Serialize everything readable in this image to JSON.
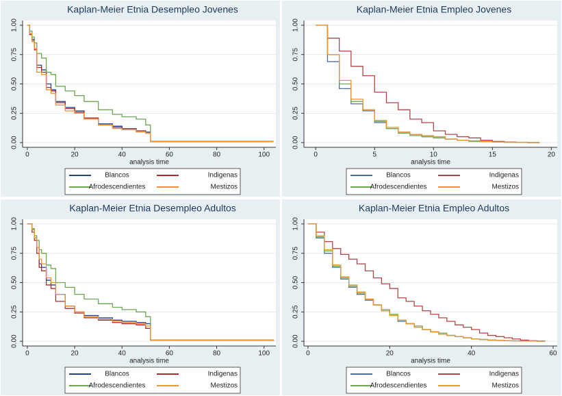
{
  "chart_data": [
    {
      "type": "step",
      "title": "Kaplan-Meier Etnia Desempleo Jovenes",
      "x_label": "analysis time",
      "xlim": [
        -2,
        105
      ],
      "xticks": [
        0,
        20,
        40,
        60,
        80,
        100
      ],
      "ylim": [
        -0.04,
        1.04
      ],
      "yticks": [
        {
          "value": 0,
          "label": "0.00"
        },
        {
          "value": 0.25,
          "label": "0.25"
        },
        {
          "value": 0.5,
          "label": "0.50"
        },
        {
          "value": 0.75,
          "label": "0.75"
        },
        {
          "value": 1,
          "label": "1.00"
        }
      ],
      "grid": true,
      "legend": "bottom",
      "series": [
        {
          "name": "Blancos",
          "color": "#1f3f8f",
          "x": [
            0,
            1,
            2,
            3,
            4,
            6,
            8,
            10,
            12,
            16,
            20,
            24,
            30,
            36,
            40,
            46,
            50,
            52,
            104
          ],
          "values": [
            1,
            0.93,
            0.88,
            0.8,
            0.66,
            0.62,
            0.5,
            0.45,
            0.35,
            0.3,
            0.27,
            0.2,
            0.16,
            0.14,
            0.12,
            0.1,
            0.09,
            0.01,
            0.01
          ]
        },
        {
          "name": "Indigenas",
          "color": "#b02a2a",
          "x": [
            0,
            1,
            2,
            3,
            4,
            6,
            8,
            10,
            12,
            16,
            20,
            24,
            30,
            36,
            40,
            46,
            50,
            52,
            104
          ],
          "values": [
            1,
            0.92,
            0.87,
            0.79,
            0.64,
            0.6,
            0.47,
            0.44,
            0.34,
            0.29,
            0.26,
            0.21,
            0.15,
            0.13,
            0.12,
            0.1,
            0.08,
            0.01,
            0.01
          ]
        },
        {
          "name": "Afrodescendientes",
          "color": "#6aa84f",
          "x": [
            0,
            1,
            2,
            3,
            4,
            6,
            8,
            10,
            12,
            16,
            20,
            24,
            30,
            36,
            40,
            46,
            50,
            52,
            104
          ],
          "values": [
            1,
            0.95,
            0.9,
            0.85,
            0.76,
            0.72,
            0.6,
            0.58,
            0.48,
            0.44,
            0.4,
            0.35,
            0.28,
            0.24,
            0.22,
            0.2,
            0.15,
            0.01,
            0.01
          ]
        },
        {
          "name": "Mestizos",
          "color": "#f0922e",
          "x": [
            0,
            1,
            2,
            3,
            4,
            6,
            8,
            10,
            12,
            16,
            20,
            24,
            30,
            36,
            40,
            46,
            50,
            52,
            104
          ],
          "values": [
            1,
            0.93,
            0.86,
            0.8,
            0.6,
            0.58,
            0.45,
            0.42,
            0.32,
            0.27,
            0.25,
            0.2,
            0.15,
            0.12,
            0.11,
            0.09,
            0.08,
            0.01,
            0.01
          ]
        }
      ]
    },
    {
      "type": "step",
      "title": "Kaplan-Meier Etnia Empleo Jovenes",
      "x_label": "analysis time",
      "xlim": [
        -1,
        20.5
      ],
      "xticks": [
        0,
        5,
        10,
        15,
        20
      ],
      "ylim": [
        -0.04,
        1.04
      ],
      "yticks": [
        {
          "value": 0,
          "label": "0.00"
        },
        {
          "value": 0.25,
          "label": "0.25"
        },
        {
          "value": 0.5,
          "label": "0.50"
        },
        {
          "value": 0.75,
          "label": "0.75"
        },
        {
          "value": 1,
          "label": "1.00"
        }
      ],
      "grid": true,
      "legend": "bottom",
      "series": [
        {
          "name": "Blancos",
          "color": "#4a6fa8",
          "x": [
            0,
            1,
            2,
            3,
            4,
            5,
            6,
            7,
            8,
            9,
            10,
            11,
            12,
            13,
            14,
            15,
            16,
            17,
            18,
            19
          ],
          "values": [
            1,
            0.69,
            0.46,
            0.33,
            0.27,
            0.17,
            0.12,
            0.09,
            0.07,
            0.05,
            0.04,
            0.03,
            0.02,
            0.015,
            0.01,
            0.005,
            0.003,
            0.002,
            0.001,
            0.001
          ]
        },
        {
          "name": "Indigenas",
          "color": "#b24545",
          "x": [
            0,
            1,
            2,
            3,
            4,
            5,
            6,
            7,
            8,
            9,
            10,
            11,
            12,
            13,
            14,
            15,
            16,
            17,
            18,
            19
          ],
          "values": [
            1,
            0.89,
            0.78,
            0.65,
            0.57,
            0.43,
            0.34,
            0.28,
            0.2,
            0.17,
            0.1,
            0.07,
            0.05,
            0.04,
            0.02,
            0.01,
            0.005,
            0.003,
            0,
            0
          ]
        },
        {
          "name": "Afrodescendientes",
          "color": "#6aa84f",
          "x": [
            0,
            1,
            2,
            3,
            4,
            5,
            6,
            7,
            8,
            9,
            10,
            11,
            12,
            13,
            14,
            15,
            16,
            17,
            18,
            19
          ],
          "values": [
            1,
            0.75,
            0.5,
            0.35,
            0.28,
            0.18,
            0.12,
            0.08,
            0.06,
            0.05,
            0.04,
            0.03,
            0.02,
            0.01,
            0.01,
            0.005,
            0.003,
            0.002,
            0.001,
            0.001
          ]
        },
        {
          "name": "Mestizos",
          "color": "#f0922e",
          "x": [
            0,
            1,
            2,
            3,
            4,
            5,
            6,
            7,
            8,
            9,
            10,
            11,
            12,
            13,
            14,
            15,
            16,
            17,
            18,
            19
          ],
          "values": [
            1,
            0.75,
            0.53,
            0.37,
            0.28,
            0.19,
            0.13,
            0.09,
            0.07,
            0.06,
            0.05,
            0.03,
            0.02,
            0.015,
            0.01,
            0.005,
            0.003,
            0.002,
            0.001,
            0.001
          ]
        }
      ]
    },
    {
      "type": "step",
      "title": "Kaplan-Meier Etnia Desempleo Adultos",
      "x_label": "analysis time",
      "xlim": [
        -2,
        105
      ],
      "xticks": [
        0,
        20,
        40,
        60,
        80,
        100
      ],
      "ylim": [
        -0.04,
        1.04
      ],
      "yticks": [
        {
          "value": 0,
          "label": "0.00"
        },
        {
          "value": 0.25,
          "label": "0.25"
        },
        {
          "value": 0.5,
          "label": "0.50"
        },
        {
          "value": 0.75,
          "label": "0.75"
        },
        {
          "value": 1,
          "label": "1.00"
        }
      ],
      "grid": true,
      "legend": "bottom",
      "series": [
        {
          "name": "Blancos",
          "color": "#1f3f8f",
          "x": [
            0,
            2,
            3,
            4,
            5,
            6,
            8,
            10,
            12,
            16,
            20,
            24,
            30,
            36,
            40,
            46,
            50,
            52,
            104
          ],
          "values": [
            1,
            0.95,
            0.88,
            0.8,
            0.66,
            0.63,
            0.52,
            0.48,
            0.4,
            0.3,
            0.25,
            0.22,
            0.2,
            0.18,
            0.17,
            0.16,
            0.15,
            0.01,
            0.005
          ]
        },
        {
          "name": "Indigenas",
          "color": "#b02a2a",
          "x": [
            0,
            2,
            3,
            4,
            5,
            6,
            8,
            10,
            12,
            16,
            20,
            24,
            30,
            36,
            40,
            46,
            50,
            52,
            104
          ],
          "values": [
            1,
            0.93,
            0.86,
            0.75,
            0.63,
            0.6,
            0.48,
            0.45,
            0.34,
            0.28,
            0.24,
            0.2,
            0.18,
            0.16,
            0.15,
            0.14,
            0.11,
            0.01,
            0.005
          ]
        },
        {
          "name": "Afrodescendientes",
          "color": "#6aa84f",
          "x": [
            0,
            2,
            3,
            4,
            5,
            6,
            8,
            10,
            12,
            16,
            20,
            24,
            30,
            36,
            40,
            46,
            50,
            52,
            104
          ],
          "values": [
            1,
            0.96,
            0.9,
            0.86,
            0.78,
            0.75,
            0.65,
            0.62,
            0.5,
            0.46,
            0.4,
            0.36,
            0.32,
            0.29,
            0.27,
            0.25,
            0.21,
            0.01,
            0.005
          ]
        },
        {
          "name": "Mestizos",
          "color": "#f0922e",
          "x": [
            0,
            2,
            3,
            4,
            5,
            6,
            8,
            10,
            12,
            16,
            20,
            24,
            30,
            36,
            40,
            46,
            50,
            52,
            104
          ],
          "values": [
            1,
            0.95,
            0.88,
            0.8,
            0.7,
            0.66,
            0.54,
            0.5,
            0.4,
            0.3,
            0.25,
            0.21,
            0.19,
            0.17,
            0.16,
            0.15,
            0.13,
            0.01,
            0.005
          ]
        }
      ]
    },
    {
      "type": "step",
      "title": "Kaplan-Meier Etnia Empleo Adultos",
      "x_label": "analysis time",
      "xlim": [
        -1,
        61
      ],
      "xticks": [
        0,
        20,
        40,
        60
      ],
      "ylim": [
        -0.04,
        1.04
      ],
      "yticks": [
        {
          "value": 0,
          "label": "0.00"
        },
        {
          "value": 0.25,
          "label": "0.25"
        },
        {
          "value": 0.5,
          "label": "0.50"
        },
        {
          "value": 0.75,
          "label": "0.75"
        },
        {
          "value": 1,
          "label": "1.00"
        }
      ],
      "grid": true,
      "legend": "bottom",
      "series": [
        {
          "name": "Blancos",
          "color": "#4a6fa8",
          "x": [
            0,
            2,
            4,
            6,
            8,
            10,
            12,
            14,
            16,
            18,
            20,
            22,
            24,
            26,
            28,
            30,
            32,
            34,
            36,
            38,
            40,
            42,
            44,
            46,
            48,
            50,
            52,
            54,
            56,
            58
          ],
          "values": [
            1,
            0.88,
            0.75,
            0.63,
            0.53,
            0.46,
            0.4,
            0.35,
            0.31,
            0.26,
            0.22,
            0.17,
            0.15,
            0.12,
            0.1,
            0.08,
            0.06,
            0.05,
            0.04,
            0.03,
            0.02,
            0.015,
            0.01,
            0.008,
            0.006,
            0.004,
            0.003,
            0.002,
            0.001,
            0.001
          ]
        },
        {
          "name": "Indigenas",
          "color": "#b24545",
          "x": [
            0,
            2,
            4,
            6,
            8,
            10,
            12,
            14,
            16,
            18,
            20,
            22,
            24,
            26,
            28,
            30,
            32,
            34,
            36,
            38,
            40,
            42,
            44,
            46,
            48,
            50,
            52,
            54,
            56,
            58
          ],
          "values": [
            1,
            0.93,
            0.85,
            0.79,
            0.74,
            0.7,
            0.66,
            0.6,
            0.54,
            0.49,
            0.45,
            0.37,
            0.34,
            0.3,
            0.26,
            0.23,
            0.2,
            0.17,
            0.14,
            0.12,
            0.1,
            0.07,
            0.05,
            0.04,
            0.03,
            0.02,
            0.01,
            0.005,
            0.003,
            0.002
          ]
        },
        {
          "name": "Afrodescendientes",
          "color": "#6aa84f",
          "x": [
            0,
            2,
            4,
            6,
            8,
            10,
            12,
            14,
            16,
            18,
            20,
            22,
            24,
            26,
            28,
            30,
            32,
            34,
            36,
            38,
            40,
            42,
            44,
            46,
            48,
            50,
            52,
            54,
            56,
            58
          ],
          "values": [
            1,
            0.89,
            0.77,
            0.64,
            0.54,
            0.47,
            0.41,
            0.36,
            0.31,
            0.27,
            0.23,
            0.18,
            0.15,
            0.13,
            0.1,
            0.08,
            0.07,
            0.05,
            0.04,
            0.03,
            0.02,
            0.015,
            0.01,
            0.008,
            0.006,
            0.004,
            0.003,
            0.002,
            0.001,
            0.001
          ]
        },
        {
          "name": "Mestizos",
          "color": "#f0922e",
          "x": [
            0,
            2,
            4,
            6,
            8,
            10,
            12,
            14,
            16,
            18,
            20,
            22,
            24,
            26,
            28,
            30,
            32,
            34,
            36,
            38,
            40,
            42,
            44,
            46,
            48,
            50,
            52,
            54,
            56,
            58
          ],
          "values": [
            1,
            0.9,
            0.78,
            0.65,
            0.55,
            0.48,
            0.42,
            0.36,
            0.31,
            0.26,
            0.22,
            0.18,
            0.15,
            0.12,
            0.1,
            0.08,
            0.06,
            0.05,
            0.04,
            0.03,
            0.02,
            0.015,
            0.01,
            0.008,
            0.006,
            0.004,
            0.003,
            0.002,
            0.001,
            0.001
          ]
        }
      ]
    }
  ]
}
